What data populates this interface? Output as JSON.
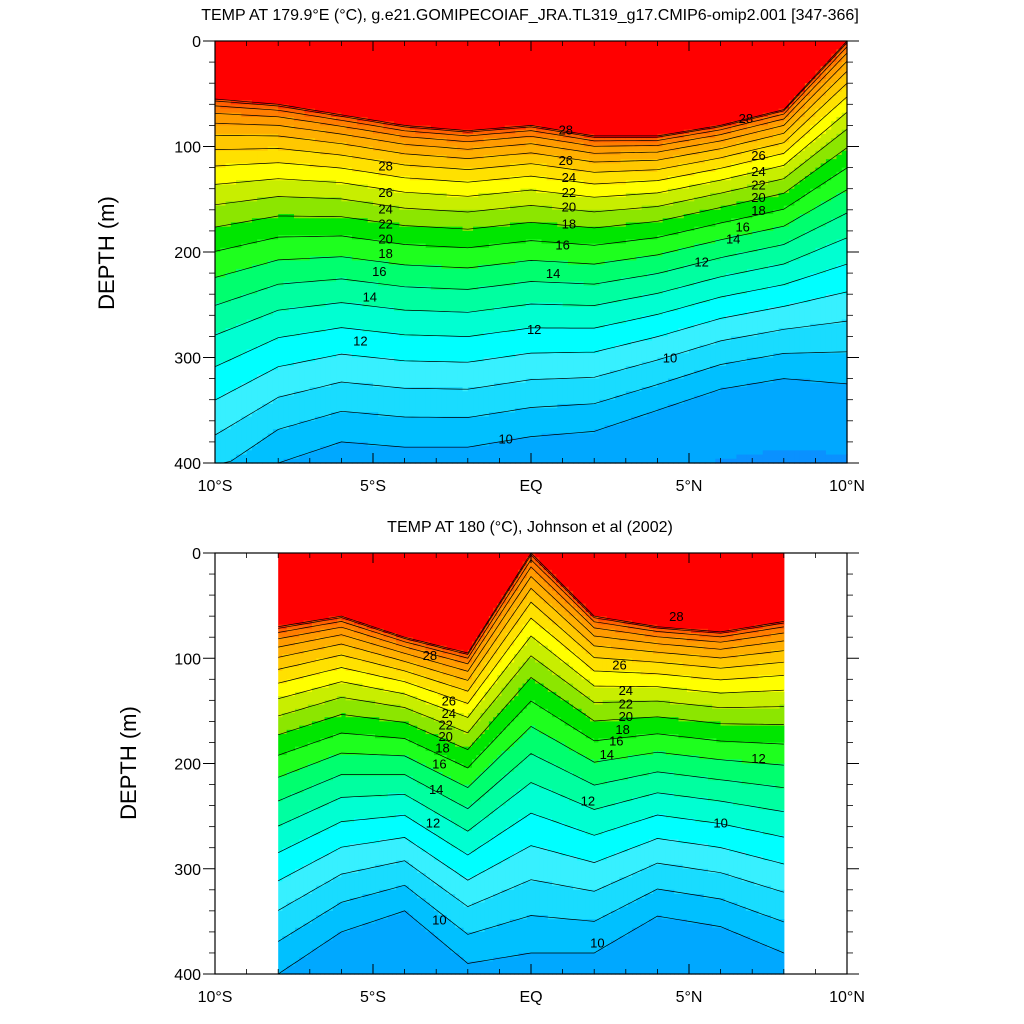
{
  "chart_data": [
    {
      "type": "heatmap",
      "subtype": "filled-contour",
      "title": "TEMP AT 179.9°E (°C), g.e21.GOMIPECOIAF_JRA.TL319_g17.CMIP6-omip2.001 [347-366]",
      "ylabel": "DEPTH (m)",
      "xlabel": "",
      "xlim": [
        -10,
        10
      ],
      "ylim": [
        400,
        0
      ],
      "y_inverted": true,
      "x_ticks": [
        -10,
        -5,
        0,
        5,
        10
      ],
      "x_tick_labels": [
        "10°S",
        "5°S",
        "EQ",
        "5°N",
        "10°N"
      ],
      "y_ticks": [
        0,
        100,
        200,
        300,
        400
      ],
      "y_tick_labels": [
        "0",
        "100",
        "200",
        "300",
        "400"
      ],
      "data_x_range": [
        -10,
        10
      ],
      "contour_interval": 1,
      "isotherm_depths": {
        "lat": [
          -10,
          -8,
          -6,
          -4,
          -2,
          0,
          2,
          4,
          6,
          8,
          10
        ],
        "29": [
          55,
          60,
          70,
          80,
          85,
          80,
          90,
          90,
          80,
          65,
          0
        ],
        "10": [
          445,
          400,
          380,
          385,
          385,
          375,
          370,
          350,
          330,
          320,
          325
        ]
      },
      "contour_labels": [
        {
          "text": "28",
          "lat": -4.6,
          "depth": 118
        },
        {
          "text": "26",
          "lat": -4.6,
          "depth": 143
        },
        {
          "text": "24",
          "lat": -4.6,
          "depth": 159
        },
        {
          "text": "22",
          "lat": -4.6,
          "depth": 173
        },
        {
          "text": "20",
          "lat": -4.6,
          "depth": 187
        },
        {
          "text": "18",
          "lat": -4.6,
          "depth": 201
        },
        {
          "text": "16",
          "lat": -4.8,
          "depth": 218
        },
        {
          "text": "14",
          "lat": -5.1,
          "depth": 242
        },
        {
          "text": "12",
          "lat": -5.4,
          "depth": 284
        },
        {
          "text": "28",
          "lat": 1.1,
          "depth": 84
        },
        {
          "text": "26",
          "lat": 1.1,
          "depth": 113
        },
        {
          "text": "24",
          "lat": 1.2,
          "depth": 129
        },
        {
          "text": "22",
          "lat": 1.2,
          "depth": 143
        },
        {
          "text": "20",
          "lat": 1.2,
          "depth": 157
        },
        {
          "text": "18",
          "lat": 1.2,
          "depth": 173
        },
        {
          "text": "16",
          "lat": 1.0,
          "depth": 193
        },
        {
          "text": "14",
          "lat": 0.7,
          "depth": 220
        },
        {
          "text": "12",
          "lat": 0.1,
          "depth": 273
        },
        {
          "text": "10",
          "lat": -0.8,
          "depth": 377
        },
        {
          "text": "28",
          "lat": 6.8,
          "depth": 73
        },
        {
          "text": "26",
          "lat": 7.2,
          "depth": 108
        },
        {
          "text": "24",
          "lat": 7.2,
          "depth": 123
        },
        {
          "text": "22",
          "lat": 7.2,
          "depth": 136
        },
        {
          "text": "20",
          "lat": 7.2,
          "depth": 148
        },
        {
          "text": "18",
          "lat": 7.2,
          "depth": 160
        },
        {
          "text": "16",
          "lat": 6.7,
          "depth": 176
        },
        {
          "text": "14",
          "lat": 6.4,
          "depth": 187
        },
        {
          "text": "12",
          "lat": 5.4,
          "depth": 209
        },
        {
          "text": "10",
          "lat": 4.4,
          "depth": 300
        }
      ]
    },
    {
      "type": "heatmap",
      "subtype": "filled-contour",
      "title": "TEMP AT 180 (°C), Johnson et al (2002)",
      "ylabel": "DEPTH (m)",
      "xlabel": "",
      "xlim": [
        -10,
        10
      ],
      "ylim": [
        400,
        0
      ],
      "y_inverted": true,
      "x_ticks": [
        -10,
        -5,
        0,
        5,
        10
      ],
      "x_tick_labels": [
        "10°S",
        "5°S",
        "EQ",
        "5°N",
        "10°N"
      ],
      "y_ticks": [
        0,
        100,
        200,
        300,
        400
      ],
      "y_tick_labels": [
        "0",
        "100",
        "200",
        "300",
        "400"
      ],
      "data_x_range": [
        -8,
        8
      ],
      "contour_interval": 1,
      "isotherm_depths": {
        "lat": [
          -8,
          -6,
          -4,
          -2,
          0,
          2,
          4,
          6,
          8
        ],
        "29": [
          70,
          60,
          80,
          95,
          0,
          60,
          70,
          75,
          65
        ],
        "10": [
          400,
          360,
          340,
          390,
          380,
          380,
          345,
          355,
          380
        ]
      },
      "contour_labels": [
        {
          "text": "28",
          "lat": -3.2,
          "depth": 97
        },
        {
          "text": "26",
          "lat": -2.6,
          "depth": 140
        },
        {
          "text": "24",
          "lat": -2.6,
          "depth": 152
        },
        {
          "text": "22",
          "lat": -2.7,
          "depth": 163
        },
        {
          "text": "20",
          "lat": -2.7,
          "depth": 174
        },
        {
          "text": "18",
          "lat": -2.8,
          "depth": 185
        },
        {
          "text": "16",
          "lat": -2.9,
          "depth": 200
        },
        {
          "text": "14",
          "lat": -3.0,
          "depth": 224
        },
        {
          "text": "12",
          "lat": -3.1,
          "depth": 256
        },
        {
          "text": "10",
          "lat": -2.9,
          "depth": 348
        },
        {
          "text": "28",
          "lat": 4.6,
          "depth": 60
        },
        {
          "text": "26",
          "lat": 2.8,
          "depth": 106
        },
        {
          "text": "24",
          "lat": 3.0,
          "depth": 130
        },
        {
          "text": "22",
          "lat": 3.0,
          "depth": 143
        },
        {
          "text": "20",
          "lat": 3.0,
          "depth": 155
        },
        {
          "text": "18",
          "lat": 2.9,
          "depth": 167
        },
        {
          "text": "16",
          "lat": 2.7,
          "depth": 178
        },
        {
          "text": "14",
          "lat": 2.4,
          "depth": 191
        },
        {
          "text": "12",
          "lat": 1.8,
          "depth": 235
        },
        {
          "text": "12",
          "lat": 7.2,
          "depth": 195
        },
        {
          "text": "10",
          "lat": 6.0,
          "depth": 256
        },
        {
          "text": "10",
          "lat": 2.1,
          "depth": 370
        }
      ]
    }
  ],
  "colors": {
    "palette": [
      "#0000ff",
      "#0a37ff",
      "#0f55ff",
      "#0a73ff",
      "#0a91ff",
      "#00a8ff",
      "#00c0ff",
      "#19dcff",
      "#37f0ff",
      "#00ffff",
      "#00ffd2",
      "#00ffa0",
      "#00ff6e",
      "#1eff1e",
      "#00e600",
      "#8ce600",
      "#c8ee00",
      "#ffff00",
      "#ffe100",
      "#ffc800",
      "#ffaf00",
      "#ff9b00",
      "#ff7d00",
      "#ff5f00",
      "#ff2d00",
      "#ff0000",
      "#e10000"
    ],
    "contour_line": "#000000",
    "axis": "#000000",
    "background": "#ffffff"
  }
}
